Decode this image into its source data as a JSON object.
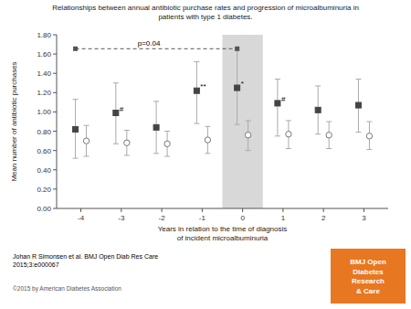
{
  "chart_data": {
    "type": "scatter",
    "title": "Relationships between annual antibiotic purchase rates and progression of microalbuminuria in\npatients with type 1 diabetes.",
    "x_label": "Years in relation to the time of diagnosis\nof incident microalbuminuria",
    "y_label": "Mean number of antibiotic purchases",
    "x": [
      -4,
      -3,
      -2,
      -1,
      0,
      1,
      2,
      3
    ],
    "xlim": [
      -4.6,
      3.6
    ],
    "xticks": [
      -4,
      -3,
      -2,
      -1,
      0,
      1,
      2,
      3
    ],
    "ylim": [
      0.0,
      1.8
    ],
    "yticks": [
      {
        "value": 0.0,
        "label": "0.00"
      },
      {
        "value": 0.2,
        "label": "0.20"
      },
      {
        "value": 0.4,
        "label": "0.40"
      },
      {
        "value": 0.6,
        "label": "0.60"
      },
      {
        "value": 0.8,
        "label": "0.80"
      },
      {
        "value": 1.0,
        "label": "1.00"
      },
      {
        "value": 1.2,
        "label": "1.20"
      },
      {
        "value": 1.4,
        "label": "1.40"
      },
      {
        "value": 1.6,
        "label": "1.60"
      },
      {
        "value": 1.8,
        "label": "1.80"
      }
    ],
    "grid": false,
    "series": [
      {
        "color": "#ffffff",
        "marker": "circle",
        "values": [
          0.7,
          0.68,
          0.67,
          0.71,
          0.76,
          0.77,
          0.76,
          0.75
        ],
        "ci_low": [
          0.54,
          0.55,
          0.54,
          0.57,
          0.6,
          0.62,
          0.62,
          0.61
        ],
        "ci_high": [
          0.86,
          0.81,
          0.8,
          0.85,
          0.91,
          0.91,
          0.9,
          0.9
        ]
      },
      {
        "color": "#444444",
        "marker": "square",
        "values": [
          0.82,
          0.99,
          0.84,
          1.22,
          1.25,
          1.09,
          1.02,
          1.07
        ],
        "ci_low": [
          0.52,
          0.67,
          0.57,
          0.88,
          0.87,
          0.75,
          0.77,
          0.79
        ],
        "ci_high": [
          1.13,
          1.3,
          1.11,
          1.52,
          1.64,
          1.34,
          1.27,
          1.34
        ]
      }
    ],
    "annotations": [
      {
        "x": -3,
        "text": "#"
      },
      {
        "x": -1,
        "text": "**"
      },
      {
        "x": 0,
        "text": "*"
      },
      {
        "x": 1,
        "text": "#"
      }
    ],
    "bracket": {
      "x_start": -4,
      "x_end": 0,
      "y": 1.655,
      "text": "p=0.04",
      "color": "#555555"
    },
    "shaded_region": {
      "range": [
        -0.5,
        0.5
      ],
      "color": "#d8d8d8"
    },
    "citation": "Johan R Simonsen et al. BMJ Open Diab Res Care\n2015;3:e000067",
    "copyright": "©2015 by American Diabetes Association",
    "badge": {
      "text": "BMJ Open\nDiabetes\nResearch\n& Care",
      "color": "#e87722"
    }
  }
}
